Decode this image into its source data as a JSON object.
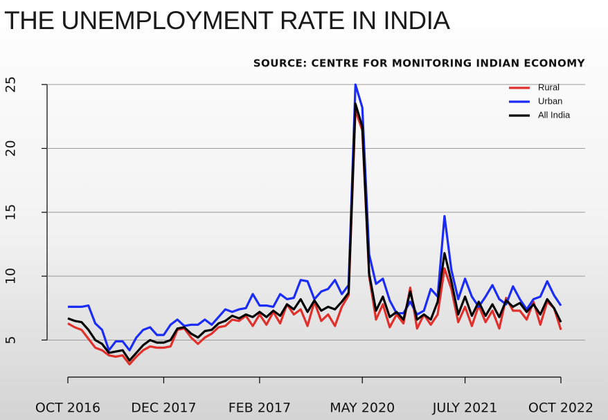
{
  "chart_data": {
    "type": "line",
    "title": "THE UNEMPLOYMENT RATE IN INDIA",
    "source": "SOURCE: CENTRE FOR MONITORING INDIAN ECONOMY",
    "categories": [
      "OCT 2016",
      null,
      null,
      null,
      null,
      null,
      null,
      null,
      null,
      null,
      null,
      null,
      null,
      null,
      "DEC 2017",
      null,
      null,
      null,
      null,
      null,
      null,
      null,
      null,
      null,
      null,
      null,
      null,
      null,
      "FEB 2017",
      null,
      null,
      null,
      null,
      null,
      null,
      null,
      null,
      null,
      null,
      null,
      null,
      null,
      null,
      "MAY 2020",
      null,
      null,
      null,
      null,
      null,
      null,
      null,
      null,
      null,
      null,
      null,
      null,
      null,
      null,
      "JULY 2021",
      null,
      null,
      null,
      null,
      null,
      null,
      null,
      null,
      null,
      null,
      null,
      null,
      null,
      "OCT 2022"
    ],
    "series": [
      {
        "name": "Rural",
        "color": "#e0302c",
        "values": [
          6.3,
          6.0,
          5.8,
          5.1,
          4.4,
          4.2,
          3.8,
          3.7,
          3.8,
          3.1,
          3.7,
          4.2,
          4.5,
          4.4,
          4.4,
          4.5,
          5.8,
          5.9,
          5.2,
          4.7,
          5.2,
          5.5,
          6.0,
          6.1,
          6.6,
          6.5,
          6.9,
          6.1,
          7.0,
          6.2,
          7.2,
          6.3,
          7.8,
          7.0,
          7.4,
          6.1,
          8.0,
          6.5,
          7.0,
          6.1,
          7.6,
          8.5,
          23.0,
          21.4,
          10.0,
          6.6,
          7.8,
          6.0,
          7.0,
          6.3,
          9.1,
          5.9,
          7.0,
          6.2,
          7.0,
          10.6,
          9.0,
          6.4,
          7.6,
          6.1,
          7.7,
          6.4,
          7.3,
          5.9,
          8.3,
          7.3,
          7.3,
          6.6,
          8.0,
          6.2,
          8.0,
          7.5,
          5.8
        ]
      },
      {
        "name": "Urban",
        "color": "#1a2cf5",
        "values": [
          7.6,
          7.6,
          7.6,
          7.7,
          6.3,
          5.8,
          4.2,
          4.9,
          4.9,
          4.2,
          5.2,
          5.8,
          6.0,
          5.4,
          5.4,
          6.2,
          6.6,
          6.1,
          6.2,
          6.2,
          6.6,
          6.2,
          6.8,
          7.4,
          7.2,
          7.4,
          7.5,
          8.6,
          7.7,
          7.7,
          7.6,
          8.6,
          8.2,
          8.3,
          9.7,
          9.6,
          8.2,
          8.8,
          9.0,
          9.7,
          8.6,
          9.3,
          25.0,
          23.2,
          11.7,
          9.4,
          9.8,
          8.1,
          7.1,
          7.1,
          8.0,
          7.0,
          7.3,
          9.0,
          8.4,
          14.7,
          10.5,
          8.2,
          9.8,
          8.4,
          7.6,
          8.4,
          9.3,
          8.2,
          7.8,
          9.2,
          8.2,
          7.4,
          8.2,
          8.4,
          9.6,
          8.5,
          7.7
        ]
      },
      {
        "name": "All India",
        "color": "#000000",
        "values": [
          6.7,
          6.5,
          6.4,
          5.8,
          5.0,
          4.7,
          4.0,
          4.1,
          4.2,
          3.4,
          4.0,
          4.6,
          5.0,
          4.8,
          4.8,
          5.0,
          5.9,
          6.0,
          5.5,
          5.2,
          5.7,
          5.8,
          6.3,
          6.5,
          6.9,
          6.7,
          7.0,
          6.8,
          7.2,
          6.8,
          7.3,
          6.9,
          7.8,
          7.4,
          8.2,
          7.2,
          8.1,
          7.3,
          7.6,
          7.4,
          8.0,
          8.7,
          23.5,
          21.7,
          10.2,
          7.3,
          8.4,
          6.8,
          7.2,
          6.6,
          8.8,
          6.6,
          7.0,
          6.6,
          8.0,
          11.8,
          9.6,
          7.0,
          8.4,
          6.9,
          8.0,
          6.9,
          7.8,
          6.8,
          8.1,
          7.6,
          7.9,
          7.2,
          7.8,
          7.0,
          8.2,
          7.5,
          6.4
        ]
      }
    ],
    "ylim": [
      2.1,
      26.2
    ],
    "yticks": [
      5,
      10,
      15,
      20,
      25
    ],
    "grid": true,
    "legend": "top-right"
  }
}
